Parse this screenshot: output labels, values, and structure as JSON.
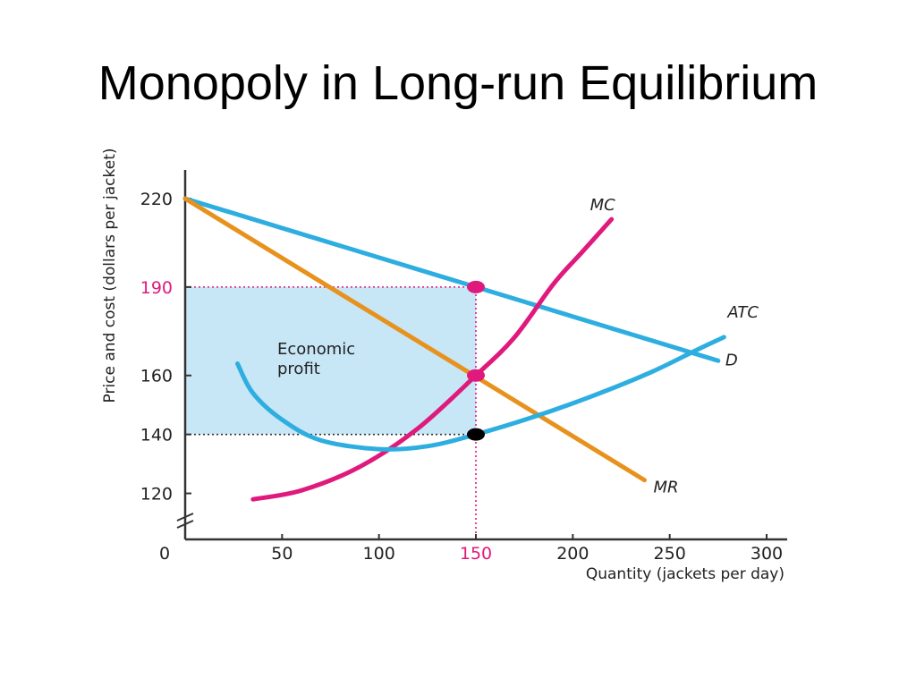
{
  "slide": {
    "title": "Monopoly in Long-run Equilibrium"
  },
  "chart_data": {
    "type": "line",
    "title": "",
    "xlabel": "Quantity (jackets per day)",
    "ylabel": "Price and cost (dollars per jacket)",
    "x_ticks": [
      0,
      50,
      100,
      150,
      200,
      250,
      300
    ],
    "y_ticks": [
      120,
      140,
      160,
      190,
      220
    ],
    "highlight_x_tick": 150,
    "highlight_y_tick": 190,
    "xlim": [
      0,
      300
    ],
    "ylim": [
      105,
      220
    ],
    "y_axis_break": true,
    "grid": false,
    "series": [
      {
        "name": "D",
        "color": "#2eaee0",
        "x": [
          0,
          150,
          275
        ],
        "y": [
          220,
          190,
          165
        ]
      },
      {
        "name": "MR",
        "color": "#e8921e",
        "x": [
          0,
          150,
          237
        ],
        "y": [
          220,
          160,
          124.5
        ]
      },
      {
        "name": "MC",
        "color": "#e0197d",
        "x": [
          35,
          60,
          90,
          120,
          150,
          170,
          190,
          205,
          220
        ],
        "y": [
          118,
          121,
          129,
          142,
          160,
          173,
          191,
          202,
          213
        ]
      },
      {
        "name": "ATC",
        "color": "#2eaee0",
        "x": [
          27,
          35,
          50,
          70,
          100,
          125,
          150,
          180,
          210,
          240,
          265,
          278
        ],
        "y": [
          164,
          154,
          145,
          138,
          135,
          136,
          140,
          146,
          153,
          161,
          169,
          173
        ]
      }
    ],
    "reference_lines": [
      {
        "y": 190,
        "x_from": 0,
        "x_to": 150,
        "color": "#e0197d"
      },
      {
        "y": 140,
        "x_from": 0,
        "x_to": 150,
        "color": "#333333"
      },
      {
        "x": 150,
        "y_from": 105,
        "y_to": 190,
        "color": "#e0197d"
      }
    ],
    "markers": [
      {
        "x": 150,
        "y": 190,
        "color": "#e0197d"
      },
      {
        "x": 150,
        "y": 160,
        "color": "#e0197d"
      },
      {
        "x": 150,
        "y": 140,
        "color": "#000000"
      }
    ],
    "shaded_region": {
      "label": "Economic profit",
      "x": [
        0,
        150
      ],
      "y": [
        140,
        190
      ],
      "color": "#c7e6f6"
    },
    "annotation_lines": [
      "Economic",
      "profit"
    ],
    "colors": {
      "axis": "#333333",
      "tick_text": "#222222",
      "highlight_tick": "#e0197d"
    }
  }
}
